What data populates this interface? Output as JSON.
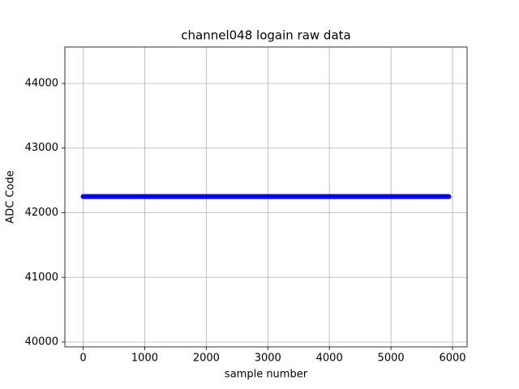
{
  "chart_data": {
    "type": "line",
    "title": "channel048 logain raw data",
    "xlabel": "sample number",
    "ylabel": "ADC Code",
    "x": [
      0,
      5940
    ],
    "series": [
      {
        "name": null,
        "color": "#0000ff",
        "values": [
          42250,
          42250
        ]
      }
    ],
    "xlim": [
      -297,
      6237
    ],
    "xticks": [
      0,
      1000,
      2000,
      3000,
      4000,
      5000,
      6000
    ],
    "ylim": [
      39925,
      44564
    ],
    "yticks": [
      40000,
      41000,
      42000,
      43000,
      44000
    ],
    "grid": true
  }
}
